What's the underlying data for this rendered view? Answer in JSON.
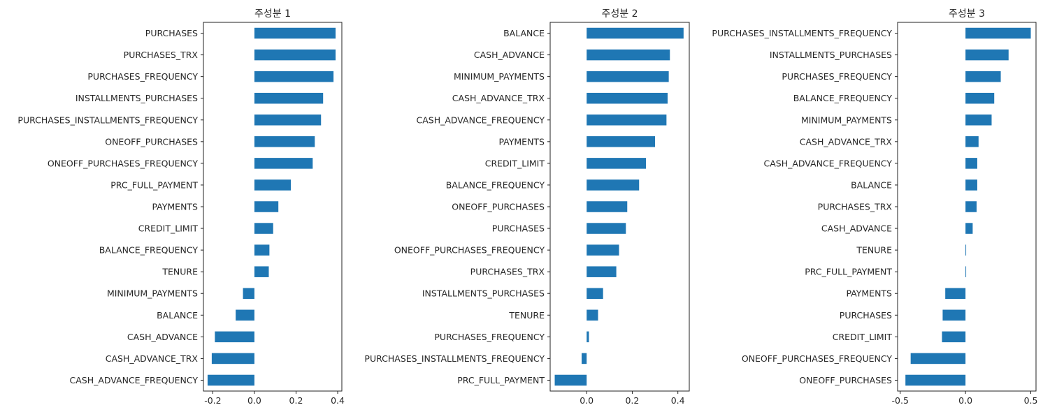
{
  "chart_data": [
    {
      "type": "bar",
      "orientation": "horizontal",
      "title": "주성분 1",
      "xlim": [
        -0.245,
        0.42
      ],
      "xticks": [
        -0.2,
        0.0,
        0.2,
        0.4
      ],
      "xtick_labels": [
        "-0.2",
        "0.0",
        "0.2",
        "0.4"
      ],
      "grid": false,
      "categories": [
        "PURCHASES",
        "PURCHASES_TRX",
        "PURCHASES_FREQUENCY",
        "INSTALLMENTS_PURCHASES",
        "PURCHASES_INSTALLMENTS_FREQUENCY",
        "ONEOFF_PURCHASES",
        "ONEOFF_PURCHASES_FREQUENCY",
        "PRC_FULL_PAYMENT",
        "PAYMENTS",
        "CREDIT_LIMIT",
        "BALANCE_FREQUENCY",
        "TENURE",
        "MINIMUM_PAYMENTS",
        "BALANCE",
        "CASH_ADVANCE",
        "CASH_ADVANCE_TRX",
        "CASH_ADVANCE_FREQUENCY"
      ],
      "values": [
        0.39,
        0.39,
        0.38,
        0.33,
        0.32,
        0.29,
        0.28,
        0.175,
        0.115,
        0.09,
        0.072,
        0.069,
        -0.055,
        -0.09,
        -0.19,
        -0.205,
        -0.225
      ]
    },
    {
      "type": "bar",
      "orientation": "horizontal",
      "title": "주성분 2",
      "xlim": [
        -0.16,
        0.45
      ],
      "xticks": [
        0.0,
        0.2,
        0.4
      ],
      "xtick_labels": [
        "0.0",
        "0.2",
        "0.4"
      ],
      "grid": false,
      "categories": [
        "BALANCE",
        "CASH_ADVANCE",
        "MINIMUM_PAYMENTS",
        "CASH_ADVANCE_TRX",
        "CASH_ADVANCE_FREQUENCY",
        "PAYMENTS",
        "CREDIT_LIMIT",
        "BALANCE_FREQUENCY",
        "ONEOFF_PURCHASES",
        "PURCHASES",
        "ONEOFF_PURCHASES_FREQUENCY",
        "PURCHASES_TRX",
        "INSTALLMENTS_PURCHASES",
        "TENURE",
        "PURCHASES_FREQUENCY",
        "PURCHASES_INSTALLMENTS_FREQUENCY",
        "PRC_FULL_PAYMENT"
      ],
      "values": [
        0.425,
        0.365,
        0.36,
        0.355,
        0.35,
        0.3,
        0.26,
        0.23,
        0.178,
        0.172,
        0.142,
        0.13,
        0.072,
        0.05,
        0.01,
        -0.022,
        -0.14
      ]
    },
    {
      "type": "bar",
      "orientation": "horizontal",
      "title": "주성분 3",
      "xlim": [
        -0.52,
        0.54
      ],
      "xticks": [
        -0.5,
        0.0,
        0.5
      ],
      "xtick_labels": [
        "-0.5",
        "0.0",
        "0.5"
      ],
      "grid": false,
      "categories": [
        "PURCHASES_INSTALLMENTS_FREQUENCY",
        "INSTALLMENTS_PURCHASES",
        "PURCHASES_FREQUENCY",
        "BALANCE_FREQUENCY",
        "MINIMUM_PAYMENTS",
        "CASH_ADVANCE_TRX",
        "CASH_ADVANCE_FREQUENCY",
        "BALANCE",
        "PURCHASES_TRX",
        "CASH_ADVANCE",
        "TENURE",
        "PRC_FULL_PAYMENT",
        "PAYMENTS",
        "PURCHASES",
        "CREDIT_LIMIT",
        "ONEOFF_PURCHASES_FREQUENCY",
        "ONEOFF_PURCHASES"
      ],
      "values": [
        0.5,
        0.33,
        0.27,
        0.22,
        0.2,
        0.1,
        0.09,
        0.09,
        0.085,
        0.055,
        0.005,
        0.005,
        -0.155,
        -0.175,
        -0.18,
        -0.42,
        -0.46
      ]
    }
  ]
}
